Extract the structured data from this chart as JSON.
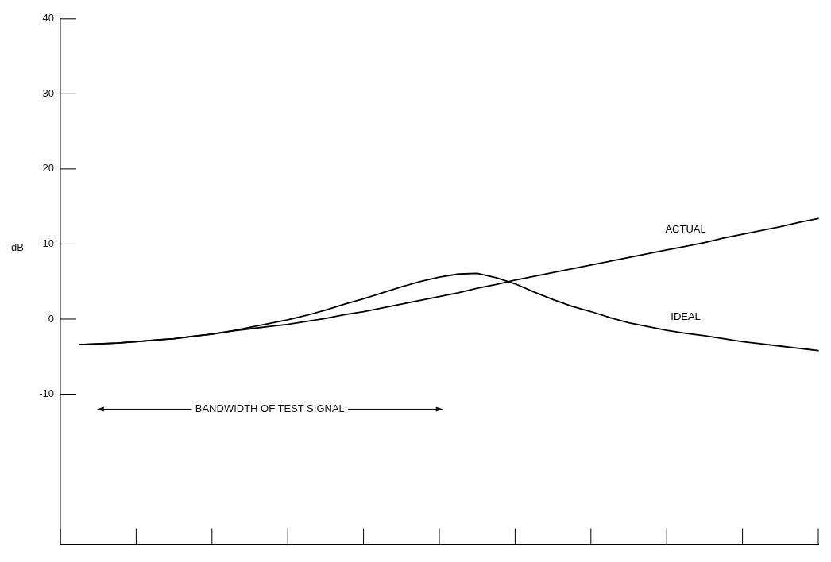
{
  "chart_data": {
    "type": "line",
    "ylabel": "dB",
    "ylim": [
      -30,
      40
    ],
    "grid": false,
    "legend": false,
    "marker": "none",
    "line_style": "solid",
    "categories": [
      null,
      null,
      null,
      null,
      null,
      null,
      null,
      null,
      null,
      null,
      null,
      null,
      null,
      null,
      null,
      null,
      null,
      null,
      null,
      null,
      null,
      null,
      null,
      null,
      null,
      null,
      null,
      null,
      null,
      null,
      null,
      null,
      null,
      null,
      null,
      null,
      null,
      null,
      null,
      null,
      null
    ],
    "yticks": [
      40,
      30,
      20,
      10,
      0,
      -10
    ],
    "series": [
      {
        "name": "ACTUAL",
        "color": "#000000",
        "values": [
          null,
          -3.4,
          -3.3,
          -3.2,
          -3.0,
          -2.8,
          -2.6,
          -2.3,
          -2.0,
          -1.6,
          -1.3,
          -1.0,
          -0.7,
          -0.3,
          0.1,
          0.6,
          1.0,
          1.5,
          2.0,
          2.5,
          3.0,
          3.5,
          4.1,
          4.6,
          5.2,
          5.7,
          6.2,
          6.7,
          7.2,
          7.7,
          8.2,
          8.7,
          9.2,
          9.7,
          10.2,
          10.8,
          11.3,
          11.8,
          12.3,
          12.9,
          13.4
        ]
      },
      {
        "name": "IDEAL",
        "color": "#000000",
        "values": [
          null,
          -3.4,
          -3.3,
          -3.2,
          -3.0,
          -2.8,
          -2.6,
          -2.3,
          -2.0,
          -1.6,
          -1.1,
          -0.6,
          -0.1,
          0.5,
          1.2,
          2.0,
          2.7,
          3.5,
          4.3,
          5.0,
          5.6,
          6.0,
          6.1,
          5.5,
          4.7,
          3.6,
          2.6,
          1.7,
          1.0,
          0.2,
          -0.5,
          -1.0,
          -1.5,
          -1.9,
          -2.2,
          -2.6,
          -3.0,
          -3.3,
          -3.6,
          -3.9,
          -4.2
        ]
      }
    ],
    "annotations": [
      "BANDWIDTH OF TEST SIGNAL"
    ]
  }
}
